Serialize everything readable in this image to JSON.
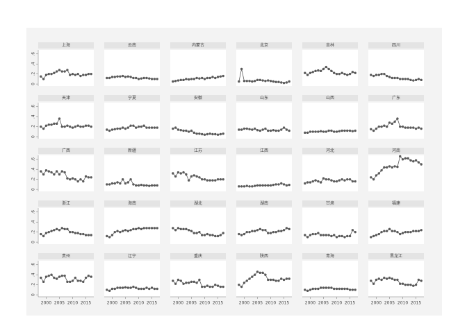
{
  "chart_data": {
    "type": "line",
    "x": [
      1998,
      1999,
      2000,
      2001,
      2002,
      2003,
      2004,
      2005,
      2006,
      2007,
      2008,
      2009,
      2010,
      2011,
      2012,
      2013,
      2014,
      2015,
      2016,
      2017
    ],
    "xlim": [
      1997,
      2018
    ],
    "xticks": [
      2000,
      2005,
      2010,
      2015
    ],
    "ylim": [
      -0.04,
      0.68
    ],
    "yticks": [
      0,
      {
        "value": 0.2,
        "label": ".2"
      },
      {
        "value": 0.4,
        "label": ".4"
      },
      {
        "value": 0.6,
        "label": ".6"
      }
    ],
    "color": "#5a5a5a",
    "series": [
      {
        "name": "上海",
        "values": [
          0.15,
          0.1,
          0.18,
          0.2,
          0.2,
          0.22,
          0.25,
          0.28,
          0.25,
          0.25,
          0.28,
          0.18,
          0.2,
          0.18,
          0.2,
          0.16,
          0.18,
          0.18,
          0.2,
          0.2
        ]
      },
      {
        "name": "云南",
        "values": [
          0.12,
          0.12,
          0.14,
          0.14,
          0.15,
          0.15,
          0.16,
          0.14,
          0.15,
          0.14,
          0.12,
          0.12,
          0.1,
          0.11,
          0.12,
          0.12,
          0.11,
          0.1,
          0.1,
          0.1
        ]
      },
      {
        "name": "内蒙古",
        "values": [
          0.05,
          0.06,
          0.07,
          0.08,
          0.08,
          0.1,
          0.09,
          0.1,
          0.1,
          0.12,
          0.11,
          0.12,
          0.1,
          0.12,
          0.12,
          0.14,
          0.12,
          0.14,
          0.15,
          0.16
        ]
      },
      {
        "name": "北京",
        "values": [
          0.05,
          0.3,
          0.06,
          0.06,
          0.06,
          0.05,
          0.06,
          0.08,
          0.08,
          0.07,
          0.06,
          0.07,
          0.06,
          0.05,
          0.04,
          0.04,
          0.03,
          0.02,
          0.03,
          0.05
        ]
      },
      {
        "name": "吉林",
        "values": [
          0.22,
          0.18,
          0.22,
          0.24,
          0.26,
          0.27,
          0.26,
          0.3,
          0.34,
          0.3,
          0.26,
          0.22,
          0.2,
          0.2,
          0.22,
          0.2,
          0.18,
          0.2,
          0.24,
          0.22
        ]
      },
      {
        "name": "四川",
        "values": [
          0.18,
          0.16,
          0.18,
          0.18,
          0.2,
          0.2,
          0.16,
          0.14,
          0.12,
          0.12,
          0.12,
          0.1,
          0.1,
          0.1,
          0.1,
          0.08,
          0.07,
          0.08,
          0.1,
          0.08
        ]
      },
      {
        "name": "天津",
        "values": [
          0.2,
          0.16,
          0.22,
          0.24,
          0.24,
          0.26,
          0.26,
          0.36,
          0.2,
          0.2,
          0.22,
          0.2,
          0.18,
          0.2,
          0.22,
          0.2,
          0.2,
          0.22,
          0.22,
          0.2
        ]
      },
      {
        "name": "宁夏",
        "values": [
          0.14,
          0.12,
          0.14,
          0.15,
          0.16,
          0.16,
          0.18,
          0.16,
          0.18,
          0.22,
          0.22,
          0.18,
          0.2,
          0.2,
          0.22,
          0.18,
          0.18,
          0.18,
          0.18,
          0.18
        ]
      },
      {
        "name": "安徽",
        "values": [
          0.16,
          0.18,
          0.14,
          0.13,
          0.12,
          0.12,
          0.1,
          0.12,
          0.08,
          0.06,
          0.06,
          0.05,
          0.04,
          0.05,
          0.06,
          0.05,
          0.05,
          0.04,
          0.05,
          0.06
        ]
      },
      {
        "name": "山东",
        "values": [
          0.14,
          0.14,
          0.16,
          0.16,
          0.15,
          0.14,
          0.16,
          0.13,
          0.12,
          0.14,
          0.16,
          0.12,
          0.12,
          0.13,
          0.12,
          0.12,
          0.14,
          0.18,
          0.14,
          0.12
        ]
      },
      {
        "name": "山西",
        "values": [
          0.08,
          0.08,
          0.1,
          0.1,
          0.1,
          0.1,
          0.11,
          0.1,
          0.1,
          0.12,
          0.12,
          0.1,
          0.1,
          0.11,
          0.12,
          0.12,
          0.12,
          0.12,
          0.11,
          0.12
        ]
      },
      {
        "name": "广东",
        "values": [
          0.15,
          0.12,
          0.16,
          0.2,
          0.2,
          0.22,
          0.2,
          0.28,
          0.26,
          0.3,
          0.36,
          0.2,
          0.2,
          0.18,
          0.18,
          0.18,
          0.18,
          0.16,
          0.18,
          0.16
        ]
      },
      {
        "name": "广西",
        "values": [
          0.36,
          0.3,
          0.38,
          0.36,
          0.34,
          0.3,
          0.36,
          0.3,
          0.36,
          0.34,
          0.22,
          0.2,
          0.22,
          0.2,
          0.16,
          0.2,
          0.16,
          0.26,
          0.24,
          0.24
        ]
      },
      {
        "name": "新疆",
        "values": [
          0.1,
          0.1,
          0.12,
          0.12,
          0.14,
          0.12,
          0.2,
          0.12,
          0.14,
          0.2,
          0.1,
          0.08,
          0.08,
          0.09,
          0.08,
          0.08,
          0.07,
          0.08,
          0.08,
          0.08
        ]
      },
      {
        "name": "江苏",
        "values": [
          0.32,
          0.26,
          0.34,
          0.32,
          0.34,
          0.3,
          0.18,
          0.26,
          0.28,
          0.26,
          0.24,
          0.2,
          0.2,
          0.18,
          0.18,
          0.18,
          0.18,
          0.2,
          0.2,
          0.2
        ]
      },
      {
        "name": "江西",
        "values": [
          0.06,
          0.06,
          0.06,
          0.07,
          0.06,
          0.06,
          0.07,
          0.08,
          0.08,
          0.08,
          0.08,
          0.08,
          0.08,
          0.09,
          0.1,
          0.1,
          0.12,
          0.1,
          0.08,
          0.09
        ]
      },
      {
        "name": "河北",
        "values": [
          0.12,
          0.14,
          0.14,
          0.16,
          0.18,
          0.16,
          0.14,
          0.22,
          0.2,
          0.2,
          0.18,
          0.16,
          0.16,
          0.18,
          0.2,
          0.18,
          0.2,
          0.2,
          0.16,
          0.16
        ]
      },
      {
        "name": "河南",
        "values": [
          0.24,
          0.2,
          0.28,
          0.32,
          0.38,
          0.44,
          0.44,
          0.46,
          0.44,
          0.46,
          0.45,
          0.66,
          0.6,
          0.62,
          0.62,
          0.58,
          0.56,
          0.58,
          0.54,
          0.5
        ]
      },
      {
        "name": "浙江",
        "values": [
          0.16,
          0.12,
          0.18,
          0.2,
          0.22,
          0.24,
          0.26,
          0.24,
          0.28,
          0.26,
          0.26,
          0.2,
          0.2,
          0.18,
          0.18,
          0.16,
          0.16,
          0.14,
          0.14,
          0.14
        ]
      },
      {
        "name": "海南",
        "values": [
          0.12,
          0.1,
          0.14,
          0.2,
          0.22,
          0.2,
          0.22,
          0.24,
          0.22,
          0.24,
          0.26,
          0.26,
          0.28,
          0.26,
          0.28,
          0.28,
          0.28,
          0.28,
          0.28,
          0.28
        ]
      },
      {
        "name": "湖北",
        "values": [
          0.28,
          0.24,
          0.28,
          0.26,
          0.26,
          0.26,
          0.24,
          0.22,
          0.18,
          0.18,
          0.2,
          0.14,
          0.14,
          0.16,
          0.14,
          0.14,
          0.12,
          0.12,
          0.14,
          0.18
        ]
      },
      {
        "name": "湖南",
        "values": [
          0.16,
          0.14,
          0.16,
          0.2,
          0.2,
          0.22,
          0.22,
          0.24,
          0.26,
          0.24,
          0.24,
          0.18,
          0.18,
          0.2,
          0.2,
          0.22,
          0.22,
          0.24,
          0.28,
          0.26
        ]
      },
      {
        "name": "甘肃",
        "values": [
          0.14,
          0.1,
          0.14,
          0.16,
          0.16,
          0.18,
          0.14,
          0.14,
          0.14,
          0.14,
          0.12,
          0.14,
          0.1,
          0.12,
          0.12,
          0.1,
          0.12,
          0.12,
          0.24,
          0.2
        ]
      },
      {
        "name": "福建",
        "values": [
          0.1,
          0.12,
          0.14,
          0.16,
          0.2,
          0.22,
          0.22,
          0.26,
          0.22,
          0.22,
          0.2,
          0.16,
          0.18,
          0.2,
          0.2,
          0.2,
          0.22,
          0.22,
          0.22,
          0.24
        ]
      },
      {
        "name": "贵州",
        "values": [
          0.34,
          0.26,
          0.36,
          0.38,
          0.4,
          0.34,
          0.32,
          0.36,
          0.38,
          0.38,
          0.26,
          0.26,
          0.28,
          0.34,
          0.28,
          0.28,
          0.26,
          0.34,
          0.38,
          0.36
        ]
      },
      {
        "name": "辽宁",
        "values": [
          0.1,
          0.08,
          0.12,
          0.12,
          0.14,
          0.14,
          0.14,
          0.15,
          0.14,
          0.14,
          0.16,
          0.14,
          0.12,
          0.12,
          0.12,
          0.14,
          0.12,
          0.14,
          0.12,
          0.12
        ]
      },
      {
        "name": "重庆",
        "values": [
          0.28,
          0.22,
          0.3,
          0.28,
          0.22,
          0.24,
          0.24,
          0.26,
          0.26,
          0.24,
          0.3,
          0.16,
          0.16,
          0.18,
          0.16,
          0.16,
          0.2,
          0.18,
          0.16,
          0.16
        ]
      },
      {
        "name": "陕西",
        "values": [
          0.2,
          0.16,
          0.24,
          0.28,
          0.32,
          0.36,
          0.4,
          0.46,
          0.44,
          0.44,
          0.4,
          0.3,
          0.3,
          0.3,
          0.28,
          0.28,
          0.32,
          0.3,
          0.32,
          0.32
        ]
      },
      {
        "name": "青海",
        "values": [
          0.1,
          0.08,
          0.1,
          0.12,
          0.12,
          0.12,
          0.14,
          0.14,
          0.14,
          0.14,
          0.14,
          0.12,
          0.12,
          0.12,
          0.12,
          0.12,
          0.12,
          0.1,
          0.1,
          0.1
        ]
      },
      {
        "name": "黑龙江",
        "values": [
          0.28,
          0.22,
          0.3,
          0.32,
          0.3,
          0.34,
          0.32,
          0.34,
          0.32,
          0.3,
          0.3,
          0.22,
          0.22,
          0.2,
          0.2,
          0.2,
          0.18,
          0.2,
          0.3,
          0.28
        ]
      }
    ]
  }
}
